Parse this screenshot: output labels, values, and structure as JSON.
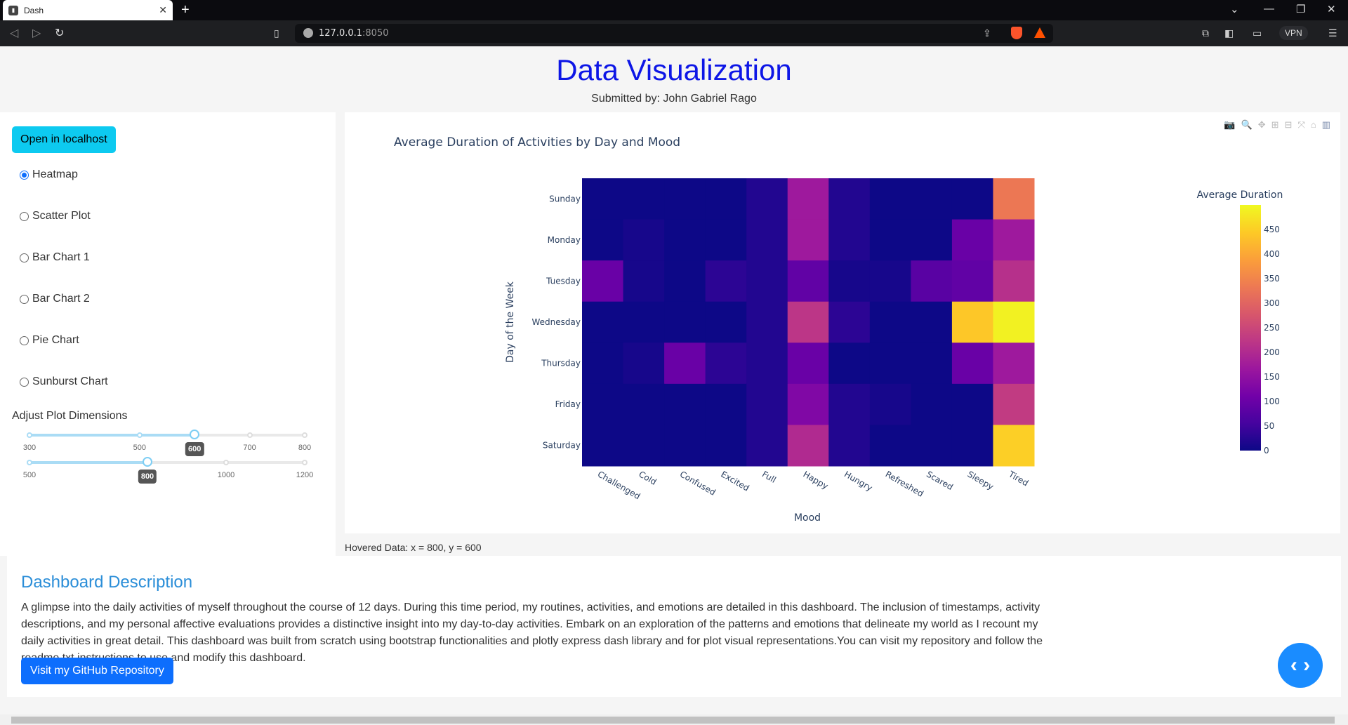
{
  "browser": {
    "tab_title": "Dash",
    "url_host": "127.0.0.1",
    "url_port": ":8050",
    "vpn_label": "VPN"
  },
  "header": {
    "title": "Data Visualization",
    "subtitle": "Submitted by: John Gabriel Rago"
  },
  "sidebar": {
    "open_button": "Open in localhost",
    "chart_options": [
      {
        "label": "Heatmap",
        "checked": true
      },
      {
        "label": "Scatter Plot",
        "checked": false
      },
      {
        "label": "Bar Chart 1",
        "checked": false
      },
      {
        "label": "Bar Chart 2",
        "checked": false
      },
      {
        "label": "Pie Chart",
        "checked": false
      },
      {
        "label": "Sunburst Chart",
        "checked": false
      }
    ],
    "adjust_label": "Adjust Plot Dimensions",
    "height_slider": {
      "marks": [
        "300",
        "500",
        "600",
        "700",
        "800"
      ],
      "mark_values": [
        300,
        500,
        600,
        700,
        800
      ],
      "min": 300,
      "max": 800,
      "value": 600,
      "tooltip": "600"
    },
    "width_slider": {
      "marks": [
        "500",
        "800",
        "1000",
        "1200"
      ],
      "mark_values": [
        500,
        800,
        1000,
        1200
      ],
      "min": 500,
      "max": 1200,
      "value": 800,
      "tooltip": "800"
    }
  },
  "hovered_text": "Hovered Data: x = 800, y = 600",
  "chart_data": {
    "type": "heatmap",
    "title": "Average Duration of Activities by Day and Mood",
    "xlabel": "Mood",
    "ylabel": "Day of the Week",
    "x": [
      "Challenged",
      "Cold",
      "Confused",
      "Excited",
      "Full",
      "Happy",
      "Hungry",
      "Refreshed",
      "Scared",
      "Sleepy",
      "Tired"
    ],
    "y": [
      "Sunday",
      "Monday",
      "Tuesday",
      "Wednesday",
      "Thursday",
      "Friday",
      "Saturday"
    ],
    "z": [
      [
        0,
        0,
        0,
        0,
        20,
        170,
        20,
        0,
        0,
        0,
        330
      ],
      [
        0,
        10,
        0,
        0,
        20,
        170,
        20,
        0,
        0,
        100,
        170
      ],
      [
        100,
        10,
        0,
        30,
        20,
        90,
        10,
        10,
        80,
        90,
        210
      ],
      [
        0,
        0,
        0,
        0,
        20,
        220,
        30,
        0,
        0,
        440,
        490
      ],
      [
        0,
        10,
        100,
        30,
        20,
        100,
        0,
        0,
        0,
        100,
        170
      ],
      [
        0,
        0,
        0,
        0,
        20,
        130,
        20,
        10,
        0,
        0,
        230
      ],
      [
        0,
        0,
        0,
        0,
        20,
        200,
        20,
        0,
        0,
        0,
        450
      ]
    ],
    "colorbar_title": "Average Duration",
    "colorbar_ticks": [
      0,
      50,
      100,
      150,
      200,
      250,
      300,
      350,
      400,
      450
    ],
    "zmin": 0,
    "zmax": 500,
    "colorscale": [
      "#0d0887",
      "#46039f",
      "#7201a8",
      "#9c179e",
      "#bd3786",
      "#d8576b",
      "#ed7953",
      "#fb9f3a",
      "#fdca26",
      "#f0f921"
    ]
  },
  "description": {
    "title": "Dashboard Description",
    "text": "A glimpse into the daily activities of myself throughout the course of 12 days. During this time period, my routines, activities, and emotions are detailed in this dashboard. The inclusion of timestamps, activity descriptions, and my personal affective evaluations provides a distinctive insight into my day-to-day activities. Embark on an exploration of the patterns and emotions that delineate my world as I recount my daily activities in great detail. This dashboard was built from scratch using bootstrap functionalities and plotly express dash library and for plot visual representations.You can visit my repository and follow the readme.txt instructions to use and modify this dashboard.",
    "github_button": "Visit my GitHub Repository"
  }
}
